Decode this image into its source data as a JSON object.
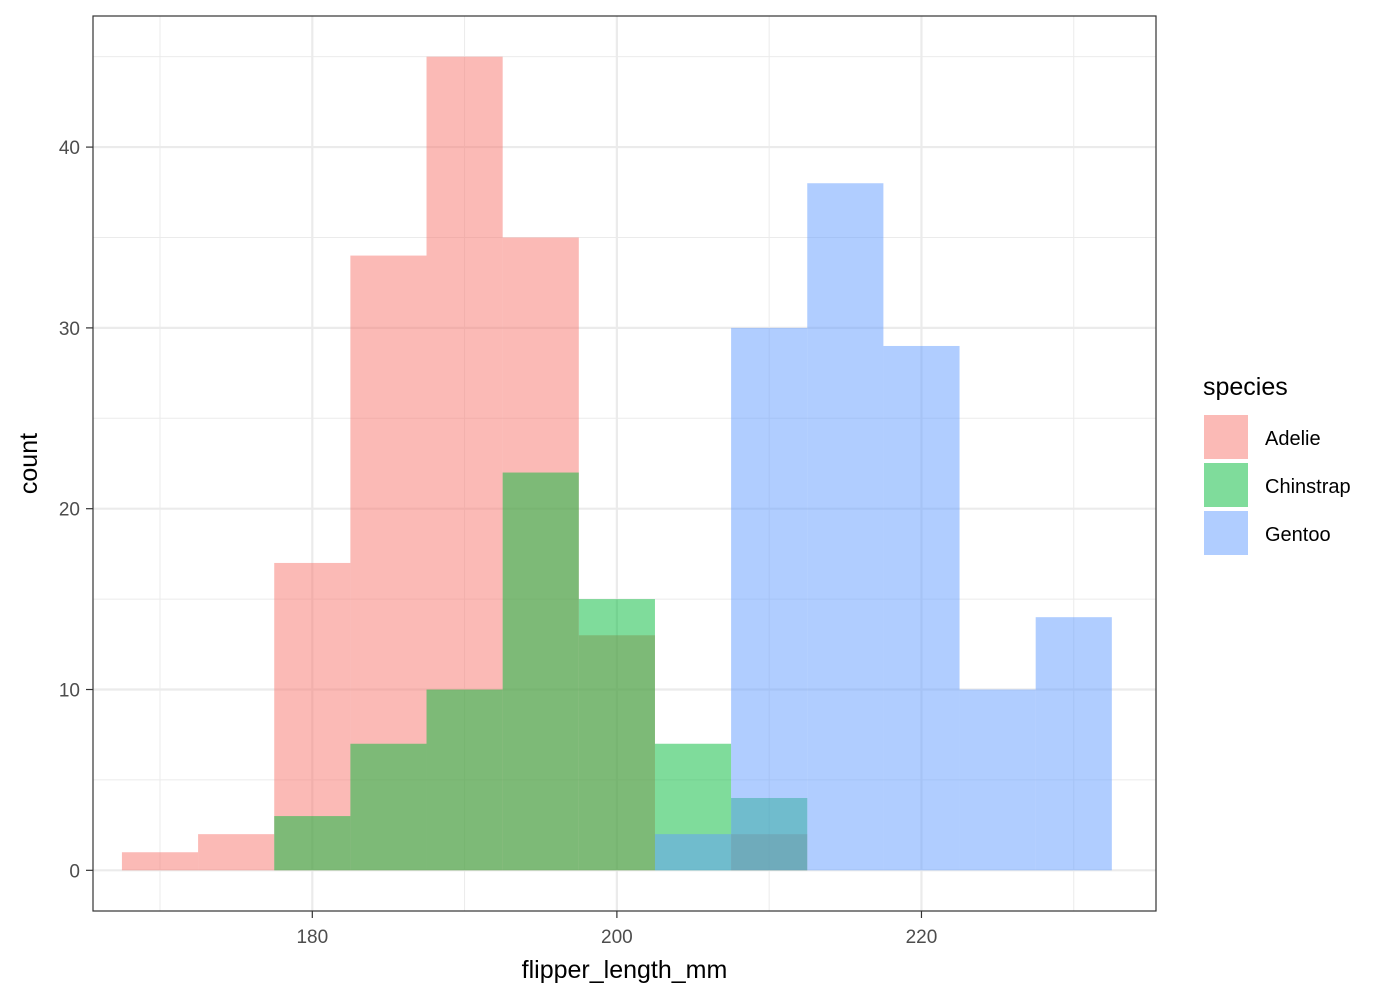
{
  "chart_data": {
    "type": "bar",
    "subtype": "overlapping-histogram",
    "xlabel": "flipper_length_mm",
    "ylabel": "count",
    "xlim": [
      165.6,
      235.4
    ],
    "ylim": [
      -2.25,
      47.25
    ],
    "x_ticks": [
      180,
      200,
      220
    ],
    "x_tick_labels": [
      "180",
      "200",
      "220"
    ],
    "y_ticks": [
      0,
      10,
      20,
      30,
      40
    ],
    "y_tick_labels": [
      "0",
      "10",
      "20",
      "30",
      "40"
    ],
    "grid": true,
    "bin_width": 5,
    "legend": {
      "title": "species",
      "position": "right"
    },
    "series": [
      {
        "name": "Adelie",
        "color": "#F8766D",
        "bins": [
          {
            "x0": 167.5,
            "x1": 172.5,
            "count": 1
          },
          {
            "x0": 172.5,
            "x1": 177.5,
            "count": 2
          },
          {
            "x0": 177.5,
            "x1": 182.5,
            "count": 17
          },
          {
            "x0": 182.5,
            "x1": 187.5,
            "count": 34
          },
          {
            "x0": 187.5,
            "x1": 192.5,
            "count": 45
          },
          {
            "x0": 192.5,
            "x1": 197.5,
            "count": 35
          },
          {
            "x0": 197.5,
            "x1": 202.5,
            "count": 13
          },
          {
            "x0": 202.5,
            "x1": 207.5,
            "count": 0
          },
          {
            "x0": 207.5,
            "x1": 212.5,
            "count": 2
          }
        ]
      },
      {
        "name": "Chinstrap",
        "color": "#00BA38",
        "bins": [
          {
            "x0": 177.5,
            "x1": 182.5,
            "count": 3
          },
          {
            "x0": 182.5,
            "x1": 187.5,
            "count": 7
          },
          {
            "x0": 187.5,
            "x1": 192.5,
            "count": 10
          },
          {
            "x0": 192.5,
            "x1": 197.5,
            "count": 22
          },
          {
            "x0": 197.5,
            "x1": 202.5,
            "count": 15
          },
          {
            "x0": 202.5,
            "x1": 207.5,
            "count": 7
          },
          {
            "x0": 207.5,
            "x1": 212.5,
            "count": 4
          }
        ]
      },
      {
        "name": "Gentoo",
        "color": "#619CFF",
        "bins": [
          {
            "x0": 202.5,
            "x1": 207.5,
            "count": 2
          },
          {
            "x0": 207.5,
            "x1": 212.5,
            "count": 30
          },
          {
            "x0": 212.5,
            "x1": 217.5,
            "count": 38
          },
          {
            "x0": 217.5,
            "x1": 222.5,
            "count": 29
          },
          {
            "x0": 222.5,
            "x1": 227.5,
            "count": 10
          },
          {
            "x0": 227.5,
            "x1": 232.5,
            "count": 14
          }
        ]
      }
    ]
  }
}
